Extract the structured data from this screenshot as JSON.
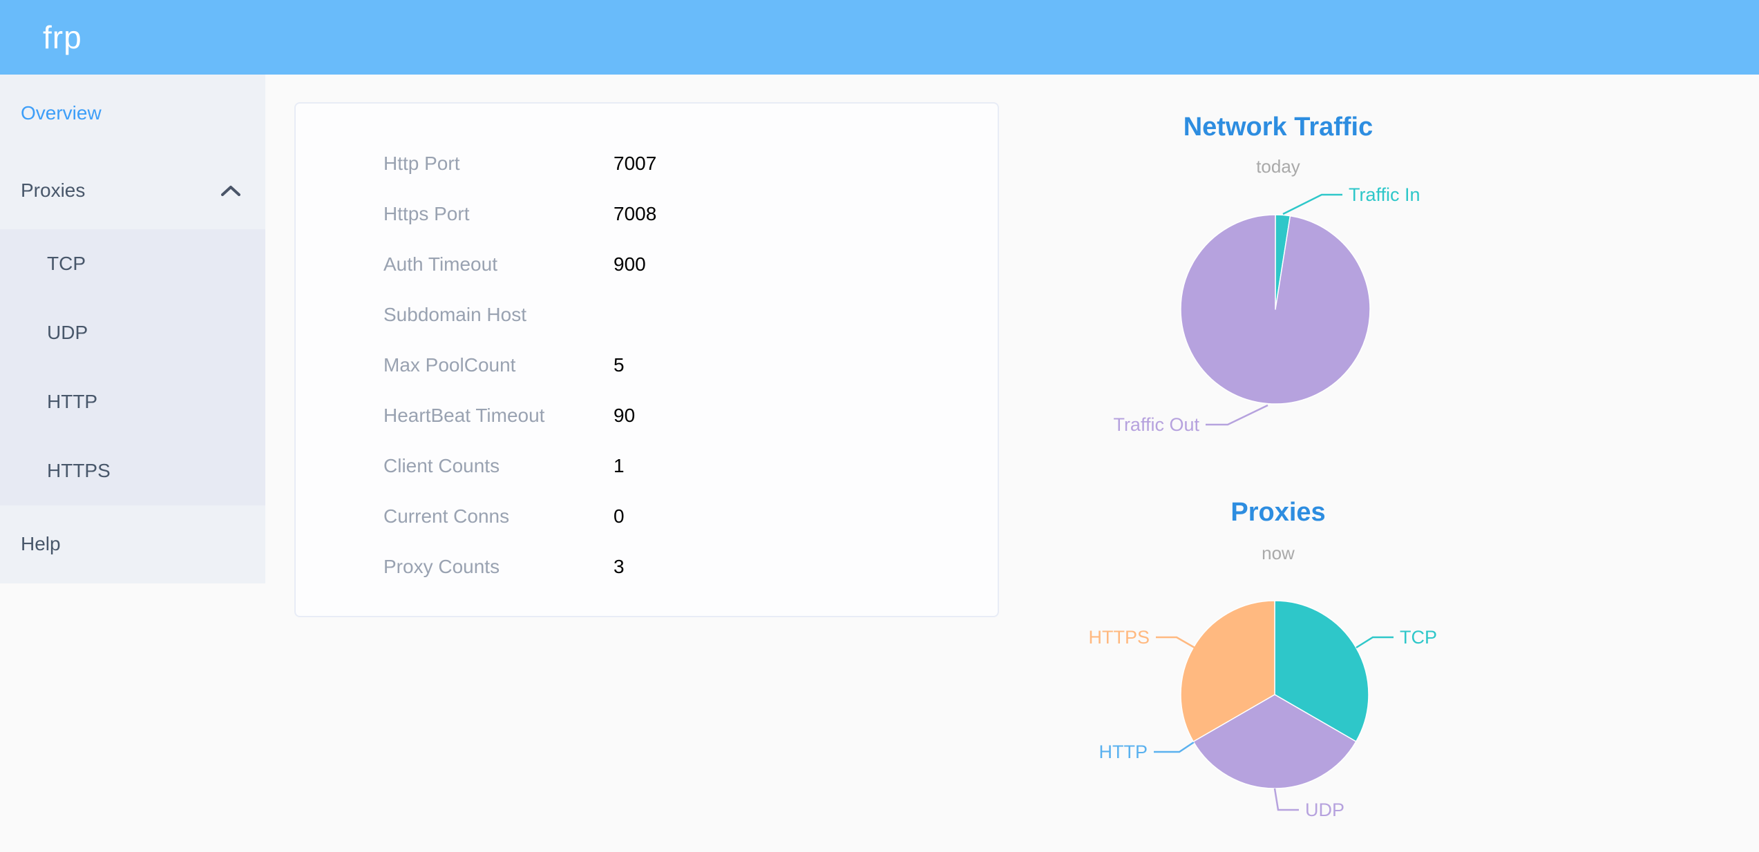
{
  "header": {
    "logo": "frp",
    "bg_color": "#69bbfa"
  },
  "sidebar": {
    "active_color": "#3d9ef8",
    "text_color": "#48576a",
    "items": [
      {
        "label": "Overview",
        "active": true
      },
      {
        "label": "Proxies",
        "expanded": true,
        "children": [
          {
            "label": "TCP"
          },
          {
            "label": "UDP"
          },
          {
            "label": "HTTP"
          },
          {
            "label": "HTTPS"
          }
        ]
      },
      {
        "label": "Help"
      }
    ]
  },
  "overview_card": {
    "rows": [
      {
        "label": "Http Port",
        "value": "7007"
      },
      {
        "label": "Https Port",
        "value": "7008"
      },
      {
        "label": "Auth Timeout",
        "value": "900"
      },
      {
        "label": "Subdomain Host",
        "value": ""
      },
      {
        "label": "Max PoolCount",
        "value": "5"
      },
      {
        "label": "HeartBeat Timeout",
        "value": "90"
      },
      {
        "label": "Client Counts",
        "value": "1"
      },
      {
        "label": "Current Conns",
        "value": "0"
      },
      {
        "label": "Proxy Counts",
        "value": "3"
      }
    ]
  },
  "chart_data": [
    {
      "type": "pie",
      "title": "Network Traffic",
      "subtitle": "today",
      "legend_position": "outside-callout-labels",
      "value_unit": "percent-estimated-from-slice-angles",
      "series": [
        {
          "name": "Traffic In",
          "value": 2.5,
          "color": "#2ec7c9"
        },
        {
          "name": "Traffic Out",
          "value": 97.5,
          "color": "#b6a2de"
        }
      ]
    },
    {
      "type": "pie",
      "title": "Proxies",
      "subtitle": "now",
      "legend_position": "outside-callout-labels",
      "value_unit": "proxy-count",
      "series": [
        {
          "name": "TCP",
          "value": 1,
          "color": "#2ec7c9"
        },
        {
          "name": "UDP",
          "value": 1,
          "color": "#b6a2de"
        },
        {
          "name": "HTTP",
          "value": 0,
          "color": "#5ab1ef"
        },
        {
          "name": "HTTPS",
          "value": 1,
          "color": "#ffb980"
        }
      ]
    }
  ]
}
